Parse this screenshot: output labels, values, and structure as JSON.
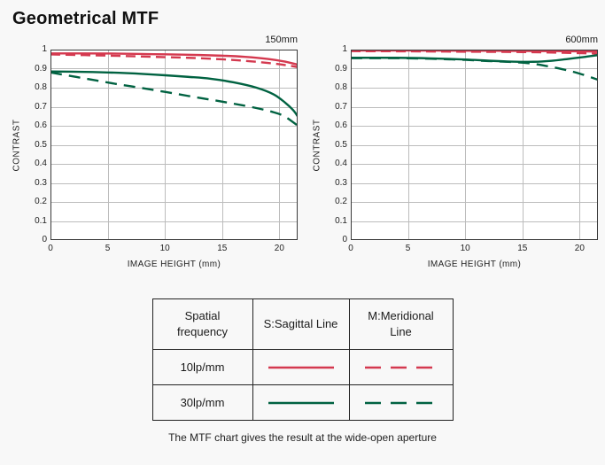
{
  "page": {
    "title": "Geometrical MTF",
    "bottom_caption": "The MTF chart gives the result at the wide-open aperture"
  },
  "colors": {
    "red": "#d4394f",
    "green": "#006241",
    "grid": "#bcbcbc",
    "plot_border": "#3a3a3a",
    "plot_bg": "#ffffff",
    "page_bg": "#f8f8f8"
  },
  "chart_data": [
    {
      "type": "line",
      "title": "150mm",
      "xlabel": "IMAGE HEIGHT (mm)",
      "ylabel": "CONTRAST",
      "xlim": [
        0,
        21.6
      ],
      "ylim": [
        0,
        1
      ],
      "grid": true,
      "xticks": [
        0,
        5,
        10,
        15,
        20
      ],
      "xtick_labels": [
        "0",
        "5",
        "10",
        "15",
        "20"
      ],
      "yticks": [
        0,
        0.1,
        0.2,
        0.3,
        0.4,
        0.5,
        0.6,
        0.7,
        0.8,
        0.9,
        1
      ],
      "ytick_labels": [
        "0",
        "0.1",
        "0.2",
        "0.3",
        "0.4",
        "0.5",
        "0.6",
        "0.7",
        "0.8",
        "0.9",
        "1"
      ],
      "series": [
        {
          "name": "10lp/mm Sagittal (S)",
          "color": "#d4394f",
          "style": "solid",
          "points": [
            [
              0,
              0.98
            ],
            [
              3,
              0.98
            ],
            [
              6,
              0.979
            ],
            [
              9,
              0.976
            ],
            [
              12,
              0.973
            ],
            [
              15,
              0.968
            ],
            [
              17,
              0.962
            ],
            [
              19,
              0.951
            ],
            [
              20.5,
              0.937
            ],
            [
              21.6,
              0.921
            ]
          ]
        },
        {
          "name": "10lp/mm Meridional (M)",
          "color": "#d4394f",
          "style": "dashed",
          "points": [
            [
              0,
              0.975
            ],
            [
              3,
              0.971
            ],
            [
              6,
              0.967
            ],
            [
              9,
              0.962
            ],
            [
              12,
              0.957
            ],
            [
              15,
              0.949
            ],
            [
              17,
              0.941
            ],
            [
              19,
              0.93
            ],
            [
              20.5,
              0.919
            ],
            [
              21.6,
              0.908
            ]
          ]
        },
        {
          "name": "30lp/mm Sagittal (S)",
          "color": "#006241",
          "style": "solid",
          "points": [
            [
              0,
              0.885
            ],
            [
              3,
              0.883
            ],
            [
              6,
              0.878
            ],
            [
              9,
              0.869
            ],
            [
              12,
              0.857
            ],
            [
              14,
              0.847
            ],
            [
              16,
              0.828
            ],
            [
              18,
              0.8
            ],
            [
              19.5,
              0.765
            ],
            [
              20.5,
              0.722
            ],
            [
              21.2,
              0.683
            ],
            [
              21.6,
              0.65
            ]
          ]
        },
        {
          "name": "30lp/mm Meridional (M)",
          "color": "#006241",
          "style": "dashed",
          "points": [
            [
              0,
              0.88
            ],
            [
              2,
              0.859
            ],
            [
              4,
              0.838
            ],
            [
              6,
              0.817
            ],
            [
              8,
              0.798
            ],
            [
              10,
              0.778
            ],
            [
              12,
              0.757
            ],
            [
              14,
              0.737
            ],
            [
              16,
              0.716
            ],
            [
              18,
              0.693
            ],
            [
              19.5,
              0.671
            ],
            [
              20.5,
              0.648
            ],
            [
              21.6,
              0.601
            ]
          ]
        }
      ]
    },
    {
      "type": "line",
      "title": "600mm",
      "xlabel": "IMAGE HEIGHT (mm)",
      "ylabel": "CONTRAST",
      "xlim": [
        0,
        21.6
      ],
      "ylim": [
        0,
        1
      ],
      "grid": true,
      "xticks": [
        0,
        5,
        10,
        15,
        20
      ],
      "xtick_labels": [
        "0",
        "5",
        "10",
        "15",
        "20"
      ],
      "yticks": [
        0,
        0.1,
        0.2,
        0.3,
        0.4,
        0.5,
        0.6,
        0.7,
        0.8,
        0.9,
        1
      ],
      "ytick_labels": [
        "0",
        "0.1",
        "0.2",
        "0.3",
        "0.4",
        "0.5",
        "0.6",
        "0.7",
        "0.8",
        "0.9",
        "1"
      ],
      "series": [
        {
          "name": "10lp/mm Sagittal (S)",
          "color": "#d4394f",
          "style": "solid",
          "points": [
            [
              0,
              0.995
            ],
            [
              5,
              0.995
            ],
            [
              10,
              0.994
            ],
            [
              15,
              0.993
            ],
            [
              18,
              0.992
            ],
            [
              21.6,
              0.99
            ]
          ]
        },
        {
          "name": "10lp/mm Meridional (M)",
          "color": "#d4394f",
          "style": "dashed",
          "points": [
            [
              0,
              0.992
            ],
            [
              5,
              0.991
            ],
            [
              10,
              0.989
            ],
            [
              15,
              0.987
            ],
            [
              18,
              0.984
            ],
            [
              21.6,
              0.979
            ]
          ]
        },
        {
          "name": "30lp/mm Sagittal (S)",
          "color": "#006241",
          "style": "solid",
          "points": [
            [
              0,
              0.957
            ],
            [
              4,
              0.957
            ],
            [
              7,
              0.954
            ],
            [
              10,
              0.948
            ],
            [
              12,
              0.942
            ],
            [
              14,
              0.937
            ],
            [
              16,
              0.936
            ],
            [
              17.5,
              0.941
            ],
            [
              19,
              0.951
            ],
            [
              20.5,
              0.962
            ],
            [
              21.6,
              0.971
            ]
          ]
        },
        {
          "name": "30lp/mm Meridional (M)",
          "color": "#006241",
          "style": "dashed",
          "points": [
            [
              0,
              0.955
            ],
            [
              4,
              0.955
            ],
            [
              7,
              0.952
            ],
            [
              10,
              0.946
            ],
            [
              12,
              0.94
            ],
            [
              14,
              0.935
            ],
            [
              15.5,
              0.929
            ],
            [
              17,
              0.915
            ],
            [
              18.5,
              0.897
            ],
            [
              20,
              0.874
            ],
            [
              21.6,
              0.842
            ]
          ]
        }
      ]
    }
  ],
  "legend_table": {
    "headers": [
      "Spatial frequency",
      "S:Sagittal Line",
      "M:Meridional Line"
    ],
    "rows": [
      {
        "frequency": "10lp/mm",
        "color": "#d4394f"
      },
      {
        "frequency": "30lp/mm",
        "color": "#006241"
      }
    ]
  }
}
